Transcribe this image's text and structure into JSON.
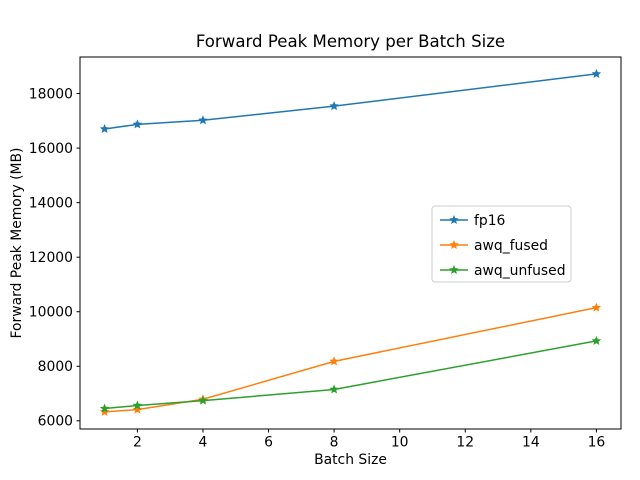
{
  "chart_data": {
    "type": "line",
    "title": "Forward Peak Memory per Batch Size",
    "xlabel": "Batch Size",
    "ylabel": "Forward Peak Memory (MB)",
    "x": [
      1,
      2,
      4,
      8,
      16
    ],
    "series": [
      {
        "name": "fp16",
        "color": "#1f77b4",
        "values": [
          16700,
          16870,
          17020,
          17540,
          18720
        ]
      },
      {
        "name": "awq_fused",
        "color": "#ff7f0e",
        "values": [
          6330,
          6410,
          6790,
          8180,
          10150
        ]
      },
      {
        "name": "awq_unfused",
        "color": "#2ca02c",
        "values": [
          6450,
          6560,
          6740,
          7150,
          8930
        ]
      }
    ],
    "xlim": [
      0.25,
      16.75
    ],
    "ylim": [
      5700,
      19340
    ],
    "xticks": [
      2,
      4,
      6,
      8,
      10,
      12,
      14,
      16
    ],
    "yticks": [
      6000,
      8000,
      10000,
      12000,
      14000,
      16000,
      18000
    ],
    "marker": "star",
    "grid": false,
    "legend_position": "center-right",
    "background_color": "#ffffff",
    "spine_color": "#000000",
    "legend_border_color": "#cccccc"
  }
}
